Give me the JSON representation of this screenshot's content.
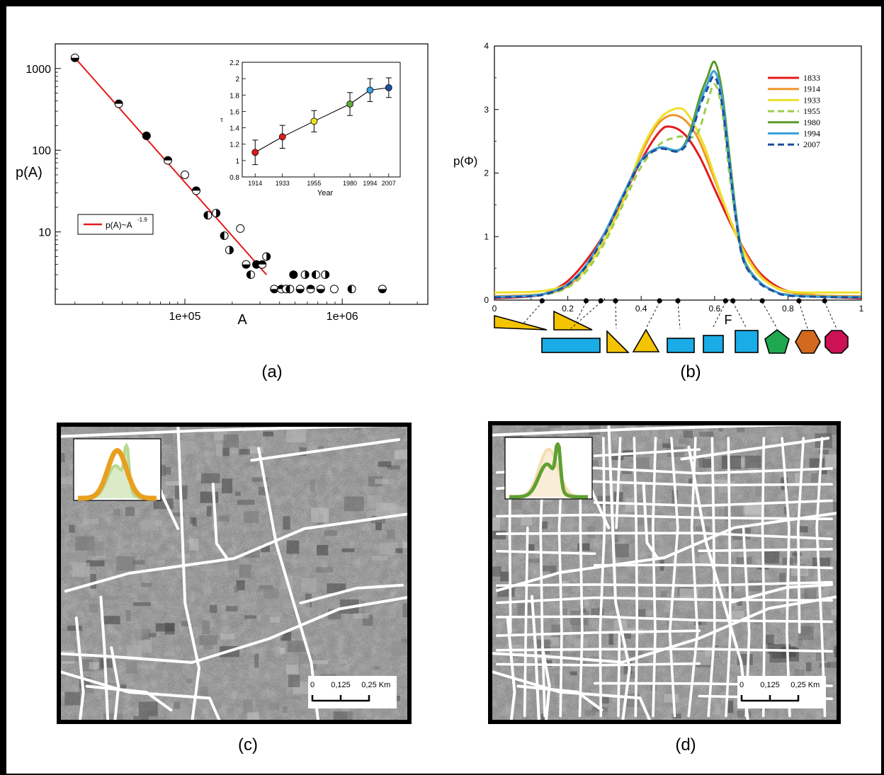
{
  "captions": {
    "a": "(a)",
    "b": "(b)",
    "c": "(c)",
    "d": "(d)"
  },
  "chart_data": [
    {
      "id": "a",
      "type": "scatter",
      "xscale": "log",
      "yscale": "log",
      "xlabel": "A",
      "ylabel": "p(A)",
      "xticks": [
        "1e+05",
        "1e+06"
      ],
      "yticks": [
        "10",
        "100",
        "1000"
      ],
      "xlim": [
        15000,
        3500000
      ],
      "ylim": [
        1.3,
        2000
      ],
      "legend": {
        "label": "p(A)~A",
        "exponent": "-1.9",
        "color": "#e41a1c"
      },
      "fit_line": {
        "x": [
          20000,
          330000
        ],
        "y": [
          1350,
          3.0
        ]
      },
      "points": [
        {
          "x": 20000,
          "y": 1350,
          "fill": "hb"
        },
        {
          "x": 38000,
          "y": 370,
          "fill": "ht"
        },
        {
          "x": 57000,
          "y": 150,
          "fill": "f"
        },
        {
          "x": 78000,
          "y": 75,
          "fill": "ht"
        },
        {
          "x": 100000,
          "y": 50,
          "fill": "o"
        },
        {
          "x": 118000,
          "y": 32,
          "fill": "ht"
        },
        {
          "x": 140000,
          "y": 16,
          "fill": "hl"
        },
        {
          "x": 158000,
          "y": 17,
          "fill": "hr"
        },
        {
          "x": 178000,
          "y": 9,
          "fill": "hl"
        },
        {
          "x": 192000,
          "y": 6,
          "fill": "hr"
        },
        {
          "x": 225000,
          "y": 11,
          "fill": "o"
        },
        {
          "x": 245000,
          "y": 4,
          "fill": "hb"
        },
        {
          "x": 262000,
          "y": 3,
          "fill": "hl"
        },
        {
          "x": 285000,
          "y": 4,
          "fill": "f"
        },
        {
          "x": 310000,
          "y": 4,
          "fill": "ht"
        },
        {
          "x": 330000,
          "y": 5,
          "fill": "hr"
        },
        {
          "x": 370000,
          "y": 2,
          "fill": "hb"
        },
        {
          "x": 410000,
          "y": 2,
          "fill": "ht"
        },
        {
          "x": 440000,
          "y": 2,
          "fill": "o"
        },
        {
          "x": 465000,
          "y": 2,
          "fill": "hl"
        },
        {
          "x": 490000,
          "y": 3,
          "fill": "f"
        },
        {
          "x": 540000,
          "y": 2,
          "fill": "hb"
        },
        {
          "x": 580000,
          "y": 3,
          "fill": "hr"
        },
        {
          "x": 630000,
          "y": 2,
          "fill": "ht"
        },
        {
          "x": 680000,
          "y": 3,
          "fill": "hl"
        },
        {
          "x": 730000,
          "y": 2,
          "fill": "hb"
        },
        {
          "x": 780000,
          "y": 3,
          "fill": "hr"
        },
        {
          "x": 890000,
          "y": 2,
          "fill": "o"
        },
        {
          "x": 1150000,
          "y": 2,
          "fill": "hl"
        },
        {
          "x": 1800000,
          "y": 2,
          "fill": "hb"
        }
      ],
      "inset": {
        "type": "line",
        "xlabel": "Year",
        "ylabel": "τ",
        "ylim": [
          0.8,
          2.2
        ],
        "yticks": [
          "0.8",
          "1",
          "1.2",
          "1.4",
          "1.6",
          "1.8",
          "2",
          "2.2"
        ],
        "x": [
          1914,
          1933,
          1955,
          1980,
          1994,
          2007
        ],
        "xticks": [
          "1914",
          "1933",
          "1955",
          "1980",
          "1994",
          "2007"
        ],
        "y": [
          1.1,
          1.29,
          1.48,
          1.69,
          1.86,
          1.89
        ],
        "err": [
          0.15,
          0.14,
          0.13,
          0.14,
          0.14,
          0.12
        ],
        "colors": [
          "#e41a1c",
          "#e41a1c",
          "#f0e020",
          "#66a832",
          "#3aa0dc",
          "#1f4fa0"
        ]
      }
    },
    {
      "id": "b",
      "type": "line",
      "xlabel": "F",
      "ylabel": "p(Φ)",
      "xlim": [
        0,
        1
      ],
      "ylim": [
        0,
        4
      ],
      "xticks": [
        "0",
        "0.2",
        "0.4",
        "0.6",
        "0.8",
        "1"
      ],
      "yticks": [
        "0",
        "1",
        "2",
        "3",
        "4"
      ],
      "series": [
        {
          "name": "1833",
          "color": "#e41a1c",
          "dash": false,
          "x": [
            0,
            0.1,
            0.15,
            0.2,
            0.25,
            0.3,
            0.35,
            0.4,
            0.45,
            0.48,
            0.52,
            0.56,
            0.6,
            0.64,
            0.68,
            0.72,
            0.76,
            0.8,
            0.85,
            0.9,
            1
          ],
          "y": [
            0.03,
            0.06,
            0.13,
            0.3,
            0.62,
            1.05,
            1.6,
            2.2,
            2.65,
            2.73,
            2.6,
            2.25,
            1.75,
            1.25,
            0.8,
            0.45,
            0.25,
            0.14,
            0.08,
            0.05,
            0.03
          ]
        },
        {
          "name": "1914",
          "color": "#f0962a",
          "dash": false,
          "x": [
            0,
            0.1,
            0.15,
            0.2,
            0.25,
            0.3,
            0.35,
            0.4,
            0.45,
            0.5,
            0.55,
            0.6,
            0.64,
            0.68,
            0.72,
            0.76,
            0.8,
            0.85,
            0.9,
            1
          ],
          "y": [
            0.06,
            0.08,
            0.11,
            0.22,
            0.5,
            0.95,
            1.55,
            2.3,
            2.8,
            2.9,
            2.6,
            1.9,
            1.3,
            0.78,
            0.42,
            0.22,
            0.13,
            0.09,
            0.07,
            0.06
          ]
        },
        {
          "name": "1933",
          "color": "#eee02a",
          "dash": false,
          "x": [
            0,
            0.1,
            0.15,
            0.2,
            0.25,
            0.3,
            0.35,
            0.4,
            0.45,
            0.5,
            0.53,
            0.57,
            0.6,
            0.64,
            0.68,
            0.72,
            0.76,
            0.8,
            0.85,
            0.9,
            1
          ],
          "y": [
            0.12,
            0.13,
            0.16,
            0.25,
            0.5,
            0.95,
            1.55,
            2.35,
            2.85,
            3.02,
            2.9,
            2.45,
            1.95,
            1.3,
            0.75,
            0.4,
            0.22,
            0.14,
            0.12,
            0.12,
            0.12
          ]
        },
        {
          "name": "1955",
          "color": "#9ccc50",
          "dash": true,
          "x": [
            0,
            0.1,
            0.15,
            0.2,
            0.25,
            0.3,
            0.35,
            0.4,
            0.45,
            0.5,
            0.55,
            0.58,
            0.6,
            0.62,
            0.64,
            0.66,
            0.68,
            0.72,
            0.76,
            0.8,
            0.9,
            1
          ],
          "y": [
            0.05,
            0.07,
            0.1,
            0.2,
            0.45,
            0.9,
            1.5,
            2.1,
            2.45,
            2.57,
            2.6,
            3.1,
            3.4,
            3.0,
            2.0,
            1.2,
            0.6,
            0.3,
            0.15,
            0.09,
            0.06,
            0.05
          ]
        },
        {
          "name": "1980",
          "color": "#5a9a2a",
          "dash": false,
          "x": [
            0,
            0.1,
            0.15,
            0.2,
            0.25,
            0.3,
            0.35,
            0.4,
            0.45,
            0.5,
            0.53,
            0.56,
            0.58,
            0.6,
            0.62,
            0.64,
            0.66,
            0.68,
            0.72,
            0.76,
            0.8,
            0.9,
            1
          ],
          "y": [
            0.05,
            0.07,
            0.12,
            0.25,
            0.55,
            1.05,
            1.65,
            2.2,
            2.4,
            2.35,
            2.6,
            3.2,
            3.5,
            3.75,
            3.3,
            2.3,
            1.3,
            0.65,
            0.3,
            0.15,
            0.08,
            0.05,
            0.05
          ]
        },
        {
          "name": "1994",
          "color": "#3aa0dc",
          "dash": false,
          "x": [
            0,
            0.1,
            0.15,
            0.2,
            0.25,
            0.3,
            0.35,
            0.4,
            0.45,
            0.5,
            0.53,
            0.56,
            0.58,
            0.6,
            0.62,
            0.64,
            0.66,
            0.68,
            0.72,
            0.76,
            0.8,
            0.9,
            1
          ],
          "y": [
            0.05,
            0.07,
            0.12,
            0.25,
            0.55,
            1.05,
            1.65,
            2.2,
            2.4,
            2.36,
            2.55,
            3.1,
            3.4,
            3.6,
            3.2,
            2.2,
            1.25,
            0.62,
            0.3,
            0.15,
            0.08,
            0.05,
            0.05
          ]
        },
        {
          "name": "2007",
          "color": "#1e4c9e",
          "dash": true,
          "x": [
            0,
            0.1,
            0.15,
            0.2,
            0.25,
            0.3,
            0.35,
            0.4,
            0.45,
            0.5,
            0.53,
            0.56,
            0.58,
            0.6,
            0.62,
            0.64,
            0.66,
            0.68,
            0.72,
            0.76,
            0.8,
            0.9,
            1
          ],
          "y": [
            0.04,
            0.06,
            0.11,
            0.24,
            0.53,
            1.02,
            1.62,
            2.18,
            2.38,
            2.34,
            2.52,
            3.05,
            3.32,
            3.52,
            3.1,
            2.15,
            1.2,
            0.6,
            0.28,
            0.14,
            0.07,
            0.05,
            0.04
          ]
        }
      ],
      "marker_positions": [
        0.13,
        0.25,
        0.29,
        0.33,
        0.45,
        0.5,
        0.63,
        0.65,
        0.73,
        0.83,
        0.9
      ],
      "shapes": [
        {
          "kind": "thin-triangle",
          "color": "#f5c400"
        },
        {
          "kind": "tall-triangle",
          "color": "#f5c400"
        },
        {
          "kind": "long-rect",
          "color": "#1aace6"
        },
        {
          "kind": "right-triangle",
          "color": "#f5c400"
        },
        {
          "kind": "triangle",
          "color": "#f5c400"
        },
        {
          "kind": "rect",
          "color": "#1aace6"
        },
        {
          "kind": "square",
          "color": "#1aace6"
        },
        {
          "kind": "square-lg",
          "color": "#1aace6"
        },
        {
          "kind": "pentagon",
          "color": "#1fa850"
        },
        {
          "kind": "hexagon",
          "color": "#d2691e"
        },
        {
          "kind": "octagon",
          "color": "#cc1155"
        }
      ]
    }
  ],
  "maps": {
    "c": {
      "scale_ticks": [
        "0",
        "0,125",
        "0,25"
      ],
      "scale_unit": "Km",
      "inset_color": "#e8a020",
      "inset_ghost": "#b8d890"
    },
    "d": {
      "scale_ticks": [
        "0",
        "0,125",
        "0,25"
      ],
      "scale_unit": "Km",
      "inset_color": "#5fa030",
      "inset_ghost": "#f5dcb0"
    }
  }
}
